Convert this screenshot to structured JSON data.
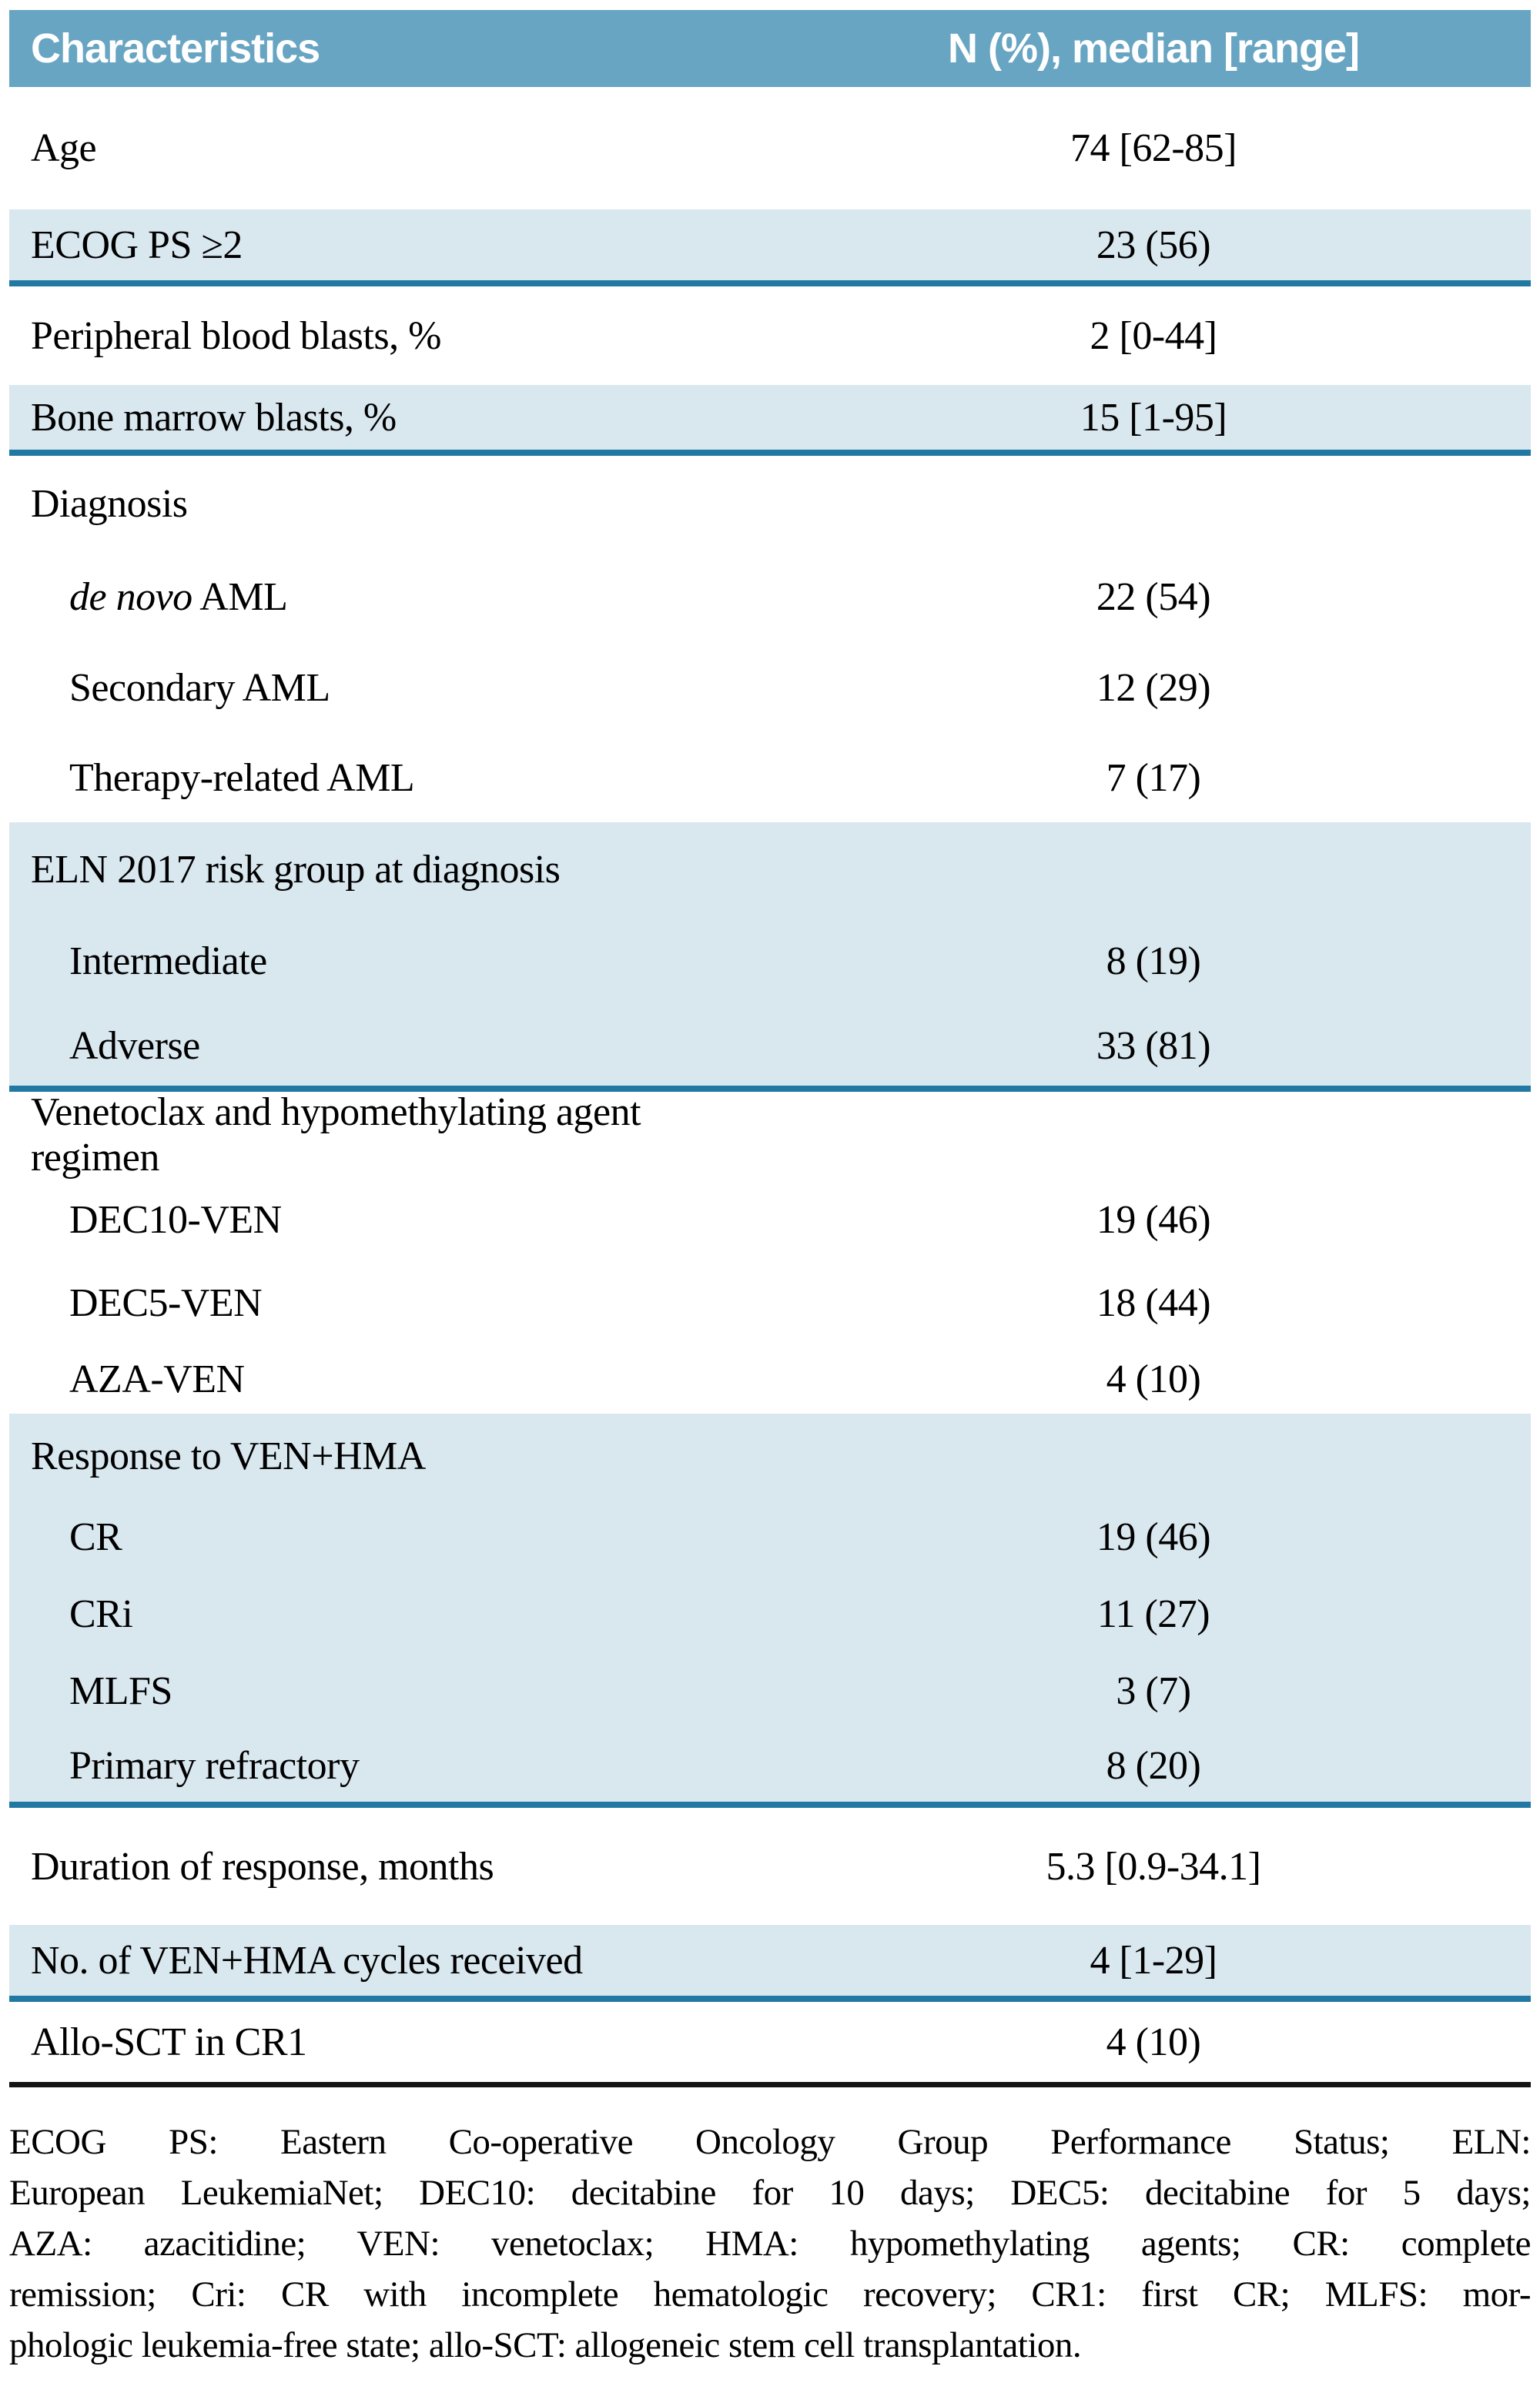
{
  "table": {
    "header": {
      "characteristics_label": "Characteristics",
      "values_label": "N (%), median [range]"
    },
    "rows": [
      {
        "label": "Age",
        "value": "74 [62-85]",
        "bg": "white",
        "indent": false,
        "rule_after": null
      },
      {
        "label": "ECOG PS ≥2",
        "value": "23 (56)",
        "bg": "blue",
        "indent": false,
        "rule_after": "teal"
      },
      {
        "label": "Peripheral blood blasts, %",
        "value": "2 [0-44]",
        "bg": "white",
        "indent": false,
        "rule_after": null
      },
      {
        "label": "Bone marrow blasts, %",
        "value": "15 [1-95]",
        "bg": "blue",
        "indent": false,
        "rule_after": "teal"
      },
      {
        "label": "Diagnosis",
        "value": "",
        "bg": "white",
        "indent": false,
        "rule_after": null
      },
      {
        "label_italic": "de novo",
        "label": " AML",
        "value": "22 (54)",
        "bg": "white",
        "indent": true,
        "rule_after": null
      },
      {
        "label": "Secondary AML",
        "value": "12 (29)",
        "bg": "white",
        "indent": true,
        "rule_after": null
      },
      {
        "label": "Therapy-related AML",
        "value": "7 (17)",
        "bg": "white",
        "indent": true,
        "rule_after": null
      },
      {
        "label": "ELN 2017 risk group at diagnosis",
        "value": "",
        "bg": "blue",
        "indent": false,
        "rule_after": null
      },
      {
        "label": "Intermediate",
        "value": "8 (19)",
        "bg": "blue",
        "indent": true,
        "rule_after": null
      },
      {
        "label": "Adverse",
        "value": "33 (81)",
        "bg": "blue",
        "indent": true,
        "rule_after": "teal"
      },
      {
        "label": "Venetoclax and hypomethylating agent regimen",
        "value": "",
        "bg": "white",
        "indent": false,
        "rule_after": null
      },
      {
        "label": "DEC10-VEN",
        "value": "19 (46)",
        "bg": "white",
        "indent": true,
        "rule_after": null
      },
      {
        "label": "DEC5-VEN",
        "value": "18 (44)",
        "bg": "white",
        "indent": true,
        "rule_after": null
      },
      {
        "label": "AZA-VEN",
        "value": "4 (10)",
        "bg": "white",
        "indent": true,
        "rule_after": null
      },
      {
        "label": "Response to VEN+HMA",
        "value": "",
        "bg": "blue",
        "indent": false,
        "rule_after": null
      },
      {
        "label": "CR",
        "value": "19 (46)",
        "bg": "blue",
        "indent": true,
        "rule_after": null
      },
      {
        "label": "CRi",
        "value": "11 (27)",
        "bg": "blue",
        "indent": true,
        "rule_after": null
      },
      {
        "label": "MLFS",
        "value": "3 (7)",
        "bg": "blue",
        "indent": true,
        "rule_after": null
      },
      {
        "label": "Primary refractory",
        "value": "8 (20)",
        "bg": "blue",
        "indent": true,
        "rule_after": "teal"
      },
      {
        "label": "Duration of response, months",
        "value": "5.3 [0.9-34.1]",
        "bg": "white",
        "indent": false,
        "rule_after": null
      },
      {
        "label": "No. of VEN+HMA cycles received",
        "value": "4 [1-29]",
        "bg": "blue",
        "indent": false,
        "rule_after": "teal"
      },
      {
        "label": "Allo-SCT in CR1",
        "value": "4 (10)",
        "bg": "white",
        "indent": false,
        "rule_after": "black"
      }
    ]
  },
  "footer": {
    "lines": [
      "ECOG PS: Eastern Co-operative Oncology Group Performance Status; ELN:",
      "European LeukemiaNet; DEC10: decitabine for 10 days; DEC5: decitabine for 5 days;",
      "AZA: azacitidine; VEN: venetoclax; HMA: hypomethylating agents; CR: complete",
      "remission; Cri: CR with incomplete hematologic recovery; CR1: first CR; MLFS: mor-",
      "phologic leukemia-free state; allo-SCT: allogeneic stem cell transplantation."
    ]
  },
  "colors": {
    "header_bg": "#68a5c3",
    "row_blue": "#d9e7ef",
    "rule_teal": "#2179a3",
    "rule_black": "#141414",
    "header_text": "#ffffff",
    "body_text": "#000000"
  }
}
